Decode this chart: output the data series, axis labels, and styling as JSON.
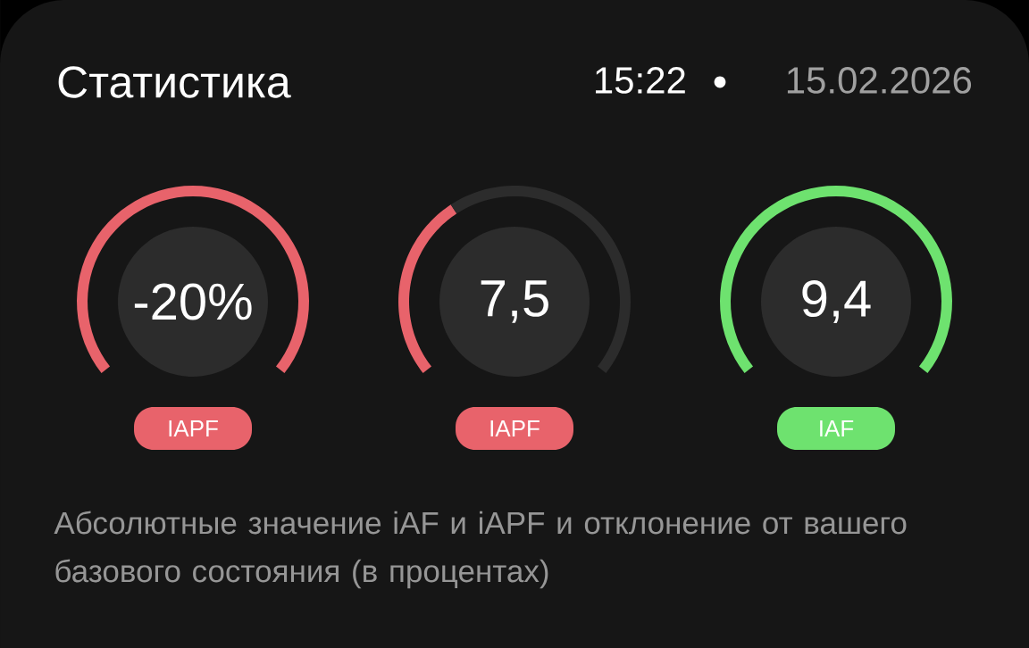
{
  "chart_data": [
    {
      "type": "other",
      "title": "Статистика",
      "subtitle": "15:22",
      "annotations": [
        "15.02.2026",
        "Абсолютные значение iAF и iAPF и отклонение от вашего базового состояния (в процентах)"
      ]
    },
    {
      "type": "donut",
      "categories": [
        null
      ],
      "values": [
        100
      ],
      "colors": [
        "#e8636b"
      ],
      "annotations": [
        "-20%"
      ],
      "xlabel": "IAPF"
    },
    {
      "type": "donut",
      "categories": [
        null,
        null
      ],
      "values": [
        37,
        63
      ],
      "colors": [
        "#e8636b",
        "#2c2c2c"
      ],
      "annotations": [
        "7,5"
      ],
      "xlabel": "IAPF"
    },
    {
      "type": "donut",
      "categories": [
        null
      ],
      "values": [
        100
      ],
      "colors": [
        "#6ee26f"
      ],
      "annotations": [
        "9,4"
      ],
      "xlabel": "IAF"
    }
  ]
}
